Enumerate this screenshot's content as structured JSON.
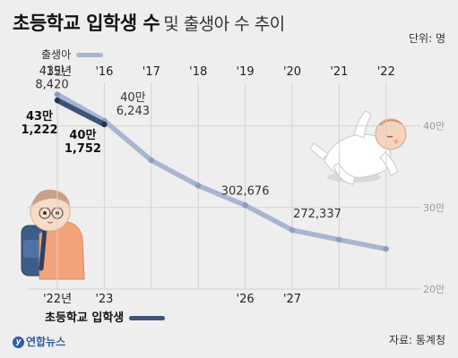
{
  "title": {
    "main": "초등학교 입학생 수",
    "sub": "및 출생아 수 추이"
  },
  "unit": "단위: 명",
  "legend": {
    "births": "출생아",
    "entrants": "초등학교 입학생"
  },
  "source": "자료: 통계청",
  "logo": {
    "mark": "y",
    "text": "연합뉴스"
  },
  "colors": {
    "births": "#a8b5d2",
    "entrants": "#3d5478",
    "background": "#eeeeee"
  },
  "chart_data": {
    "type": "line",
    "ylim": [
      200000,
      450000
    ],
    "yticks": [
      "40만",
      "30만",
      "20만"
    ],
    "ytick_values": [
      400000,
      300000,
      200000
    ],
    "top_axis": {
      "labels": [
        "'15년",
        "'16",
        "'17",
        "'18",
        "'19",
        "'20",
        "'21",
        "'22"
      ]
    },
    "bottom_axis": {
      "labels": [
        "'22년",
        "'23",
        "'26",
        "'27"
      ],
      "years": [
        2022,
        2023,
        2026,
        2027
      ]
    },
    "series": [
      {
        "name": "출생아",
        "years": [
          2015,
          2016,
          2017,
          2018,
          2019,
          2020,
          2021,
          2022
        ],
        "values": [
          438420,
          406243,
          357771,
          326822,
          302676,
          272337,
          260562,
          249186
        ]
      },
      {
        "name": "초등학교 입학생",
        "years": [
          2022,
          2023
        ],
        "values": [
          431222,
          401752
        ]
      }
    ],
    "annotations": [
      {
        "series": "출생아",
        "year": 2015,
        "lines": [
          "43만",
          "8,420"
        ],
        "bold": false
      },
      {
        "series": "출생아",
        "year": 2016,
        "lines": [
          "40만",
          "6,243"
        ],
        "bold": false
      },
      {
        "series": "출생아",
        "year": 2019,
        "lines": [
          "302,676"
        ],
        "bold": false
      },
      {
        "series": "출생아",
        "year": 2020,
        "lines": [
          "272,337"
        ],
        "bold": false
      },
      {
        "series": "초등학교 입학생",
        "year": 2022,
        "lines": [
          "43만",
          "1,222"
        ],
        "bold": true
      },
      {
        "series": "초등학교 입학생",
        "year": 2023,
        "lines": [
          "40만",
          "1,752"
        ],
        "bold": true
      }
    ]
  }
}
